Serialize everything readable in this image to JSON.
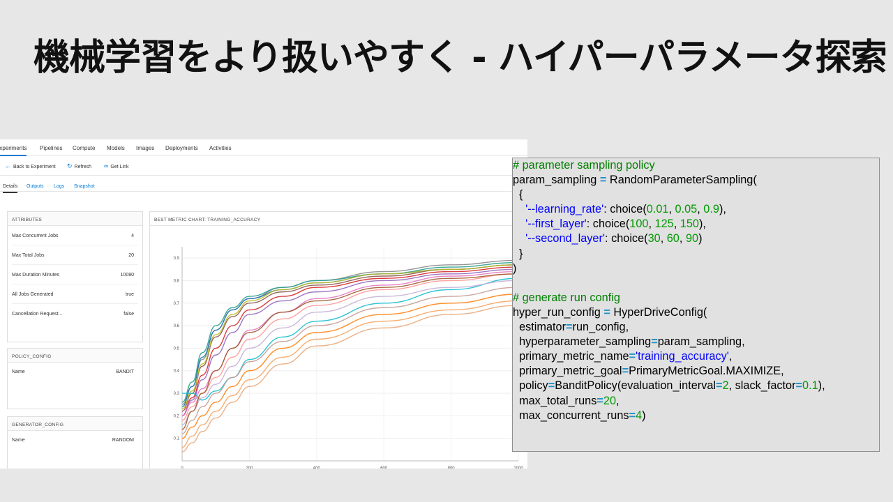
{
  "slide": {
    "title": "機械学習をより扱いやすく - ハイパーパラメータ探索"
  },
  "portal": {
    "nav": [
      "Experiments",
      "Pipelines",
      "Compute",
      "Models",
      "Images",
      "Deployments",
      "Activities"
    ],
    "toolbar": {
      "back": "Back to Experiment",
      "refresh": "Refresh",
      "get_link": "Get Link"
    },
    "subtabs": [
      "Details",
      "Outputs",
      "Logs",
      "Snapshot"
    ],
    "attributes": {
      "header": "ATTRIBUTES",
      "rows": [
        {
          "key": "Max Concurrent Jobs",
          "value": "4"
        },
        {
          "key": "Max Total Jobs",
          "value": "20"
        },
        {
          "key": "Max Duration Minutes",
          "value": "10080"
        },
        {
          "key": "All Jobs Generated",
          "value": "true"
        },
        {
          "key": "Cancellation Request...",
          "value": "false"
        }
      ]
    },
    "policy_config": {
      "header": "POLICY_CONFIG",
      "key": "Name",
      "value": "BANDIT"
    },
    "generator_config": {
      "header": "GENERATOR_CONFIG",
      "key": "Name",
      "value": "RANDOM"
    },
    "chart_title": "BEST METRIC CHART: TRAINING_ACCURACY"
  },
  "chart_data": {
    "type": "line",
    "title": "BEST METRIC CHART: TRAINING_ACCURACY",
    "xlim": [
      0,
      1000
    ],
    "ylim": [
      0,
      0.95
    ],
    "x_ticks": [
      0,
      200,
      400,
      600,
      800,
      1000
    ],
    "y_ticks": [
      0.1,
      0.2,
      0.3,
      0.4,
      0.5,
      0.6,
      0.7,
      0.8,
      0.9
    ],
    "grid": true,
    "series": [
      {
        "color": "#888888",
        "values": [
          [
            0,
            0.25
          ],
          [
            30,
            0.33
          ],
          [
            60,
            0.45
          ],
          [
            100,
            0.58
          ],
          [
            150,
            0.67
          ],
          [
            200,
            0.72
          ],
          [
            300,
            0.77
          ],
          [
            400,
            0.8
          ],
          [
            600,
            0.84
          ],
          [
            800,
            0.87
          ],
          [
            1000,
            0.89
          ]
        ]
      },
      {
        "color": "#2a9d8f",
        "values": [
          [
            0,
            0.26
          ],
          [
            30,
            0.35
          ],
          [
            60,
            0.48
          ],
          [
            100,
            0.6
          ],
          [
            150,
            0.68
          ],
          [
            200,
            0.73
          ],
          [
            300,
            0.77
          ],
          [
            400,
            0.8
          ],
          [
            600,
            0.83
          ],
          [
            800,
            0.86
          ],
          [
            1000,
            0.88
          ]
        ]
      },
      {
        "color": "#1f77b4",
        "values": [
          [
            0,
            0.24
          ],
          [
            30,
            0.33
          ],
          [
            60,
            0.46
          ],
          [
            100,
            0.58
          ],
          [
            150,
            0.67
          ],
          [
            200,
            0.72
          ],
          [
            300,
            0.76
          ],
          [
            400,
            0.79
          ],
          [
            600,
            0.83
          ],
          [
            800,
            0.85
          ],
          [
            1000,
            0.87
          ]
        ]
      },
      {
        "color": "#8c564b",
        "values": [
          [
            0,
            0.22
          ],
          [
            30,
            0.3
          ],
          [
            60,
            0.42
          ],
          [
            100,
            0.55
          ],
          [
            150,
            0.64
          ],
          [
            200,
            0.7
          ],
          [
            300,
            0.75
          ],
          [
            400,
            0.78
          ],
          [
            600,
            0.82
          ],
          [
            800,
            0.85
          ],
          [
            1000,
            0.87
          ]
        ]
      },
      {
        "color": "#bcbd22",
        "values": [
          [
            0,
            0.23
          ],
          [
            30,
            0.31
          ],
          [
            60,
            0.43
          ],
          [
            100,
            0.56
          ],
          [
            150,
            0.65
          ],
          [
            200,
            0.71
          ],
          [
            300,
            0.76
          ],
          [
            400,
            0.79
          ],
          [
            600,
            0.83
          ],
          [
            800,
            0.85
          ],
          [
            1000,
            0.87
          ]
        ]
      },
      {
        "color": "#d62728",
        "values": [
          [
            0,
            0.2
          ],
          [
            30,
            0.28
          ],
          [
            60,
            0.38
          ],
          [
            100,
            0.5
          ],
          [
            150,
            0.6
          ],
          [
            200,
            0.67
          ],
          [
            300,
            0.73
          ],
          [
            400,
            0.77
          ],
          [
            600,
            0.81
          ],
          [
            800,
            0.84
          ],
          [
            1000,
            0.86
          ]
        ]
      },
      {
        "color": "#9467bd",
        "values": [
          [
            0,
            0.2
          ],
          [
            30,
            0.27
          ],
          [
            60,
            0.36
          ],
          [
            100,
            0.47
          ],
          [
            150,
            0.57
          ],
          [
            200,
            0.65
          ],
          [
            300,
            0.71
          ],
          [
            400,
            0.75
          ],
          [
            600,
            0.8
          ],
          [
            800,
            0.83
          ],
          [
            1000,
            0.85
          ]
        ]
      },
      {
        "color": "#e377c2",
        "values": [
          [
            0,
            0.2
          ],
          [
            30,
            0.26
          ],
          [
            60,
            0.32
          ],
          [
            100,
            0.4
          ],
          [
            150,
            0.5
          ],
          [
            200,
            0.58
          ],
          [
            300,
            0.66
          ],
          [
            400,
            0.72
          ],
          [
            600,
            0.78
          ],
          [
            800,
            0.82
          ],
          [
            1000,
            0.84
          ]
        ]
      },
      {
        "color": "#ff9896",
        "values": [
          [
            0,
            0.18
          ],
          [
            30,
            0.24
          ],
          [
            60,
            0.3
          ],
          [
            100,
            0.37
          ],
          [
            150,
            0.46
          ],
          [
            200,
            0.54
          ],
          [
            300,
            0.63
          ],
          [
            400,
            0.69
          ],
          [
            600,
            0.76
          ],
          [
            800,
            0.8
          ],
          [
            1000,
            0.83
          ]
        ]
      },
      {
        "color": "#17becf",
        "values": [
          [
            0,
            0.3
          ],
          [
            30,
            0.3
          ],
          [
            60,
            0.27
          ],
          [
            100,
            0.31
          ],
          [
            150,
            0.37
          ],
          [
            200,
            0.45
          ],
          [
            300,
            0.55
          ],
          [
            400,
            0.62
          ],
          [
            600,
            0.7
          ],
          [
            800,
            0.76
          ],
          [
            1000,
            0.81
          ]
        ]
      },
      {
        "color": "#c5b0d5",
        "values": [
          [
            0,
            0.16
          ],
          [
            30,
            0.22
          ],
          [
            60,
            0.28
          ],
          [
            100,
            0.34
          ],
          [
            150,
            0.42
          ],
          [
            200,
            0.5
          ],
          [
            300,
            0.59
          ],
          [
            400,
            0.66
          ],
          [
            600,
            0.73
          ],
          [
            800,
            0.77
          ],
          [
            1000,
            0.8
          ]
        ]
      },
      {
        "color": "#c49c94",
        "values": [
          [
            0,
            0.12
          ],
          [
            30,
            0.18
          ],
          [
            60,
            0.24
          ],
          [
            100,
            0.3
          ],
          [
            150,
            0.37
          ],
          [
            200,
            0.44
          ],
          [
            300,
            0.53
          ],
          [
            400,
            0.6
          ],
          [
            600,
            0.68
          ],
          [
            800,
            0.73
          ],
          [
            1000,
            0.77
          ]
        ]
      },
      {
        "color": "#ff7f0e",
        "values": [
          [
            0,
            0.1
          ],
          [
            30,
            0.15
          ],
          [
            60,
            0.2
          ],
          [
            100,
            0.26
          ],
          [
            150,
            0.33
          ],
          [
            200,
            0.4
          ],
          [
            300,
            0.5
          ],
          [
            400,
            0.57
          ],
          [
            600,
            0.65
          ],
          [
            800,
            0.7
          ],
          [
            1000,
            0.74
          ]
        ]
      },
      {
        "color": "#f4a460",
        "values": [
          [
            0,
            0.06
          ],
          [
            30,
            0.11
          ],
          [
            60,
            0.16
          ],
          [
            100,
            0.22
          ],
          [
            150,
            0.29
          ],
          [
            200,
            0.36
          ],
          [
            300,
            0.46
          ],
          [
            400,
            0.54
          ],
          [
            600,
            0.62
          ],
          [
            800,
            0.67
          ],
          [
            1000,
            0.71
          ]
        ]
      },
      {
        "color": "#e8a87c",
        "values": [
          [
            0,
            0.04
          ],
          [
            30,
            0.08
          ],
          [
            60,
            0.13
          ],
          [
            100,
            0.19
          ],
          [
            150,
            0.26
          ],
          [
            200,
            0.33
          ],
          [
            300,
            0.43
          ],
          [
            400,
            0.51
          ],
          [
            600,
            0.59
          ],
          [
            800,
            0.65
          ],
          [
            1000,
            0.69
          ]
        ]
      },
      {
        "color": "#a05a2c",
        "values": [
          [
            0,
            0.14
          ],
          [
            30,
            0.22
          ],
          [
            60,
            0.3
          ],
          [
            100,
            0.4
          ],
          [
            150,
            0.5
          ],
          [
            200,
            0.57
          ],
          [
            300,
            0.66
          ],
          [
            400,
            0.71
          ],
          [
            600,
            0.77
          ],
          [
            800,
            0.81
          ],
          [
            1000,
            0.83
          ]
        ]
      }
    ]
  },
  "code": {
    "comment1": "# parameter sampling policy",
    "l2a": "param_sampling ",
    "l2op": "=",
    "l2b": " RandomParameterSampling(",
    "l3": "  {",
    "l4str": "'--learning_rate'",
    "l4a": ": choice(",
    "l4n1": "0.01",
    "l4n2": "0.05",
    "l4n3": "0.9",
    "l4end": "),",
    "l5str": "'--first_layer'",
    "l5a": ": choice(",
    "l5n1": "100",
    "l5n2": "125",
    "l5n3": "150",
    "l5end": "),",
    "l6str": "'--second_layer'",
    "l6a": ": choice(",
    "l6n1": "30",
    "l6n2": "60",
    "l6n3": "90",
    "l6end": ")",
    "l7": "  }",
    "l8": ")",
    "comment2": "# generate run config",
    "l10a": "hyper_run_config ",
    "l10op": "=",
    "l10b": " HyperDriveConfig(",
    "l11a": "estimator",
    "l11b": "run_config,",
    "l12a": "hyperparameter_sampling",
    "l12b": "param_sampling,",
    "l13a": "primary_metric_name",
    "l13str": "'training_accuracy'",
    "l14a": "primary_metric_goal",
    "l14b": "PrimaryMetricGoal.MAXIMIZE,",
    "l15a": "policy",
    "l15b": "BanditPolicy(evaluation_interval",
    "l15n1": "2",
    "l15c": ", slack_factor",
    "l15n2": "0.1",
    "l15d": "),",
    "l16a": "max_total_runs",
    "l16n": "20",
    "l17a": "max_concurrent_runs",
    "l17n": "4",
    "l17end": ")",
    "sep": ", ",
    "eq": "="
  }
}
